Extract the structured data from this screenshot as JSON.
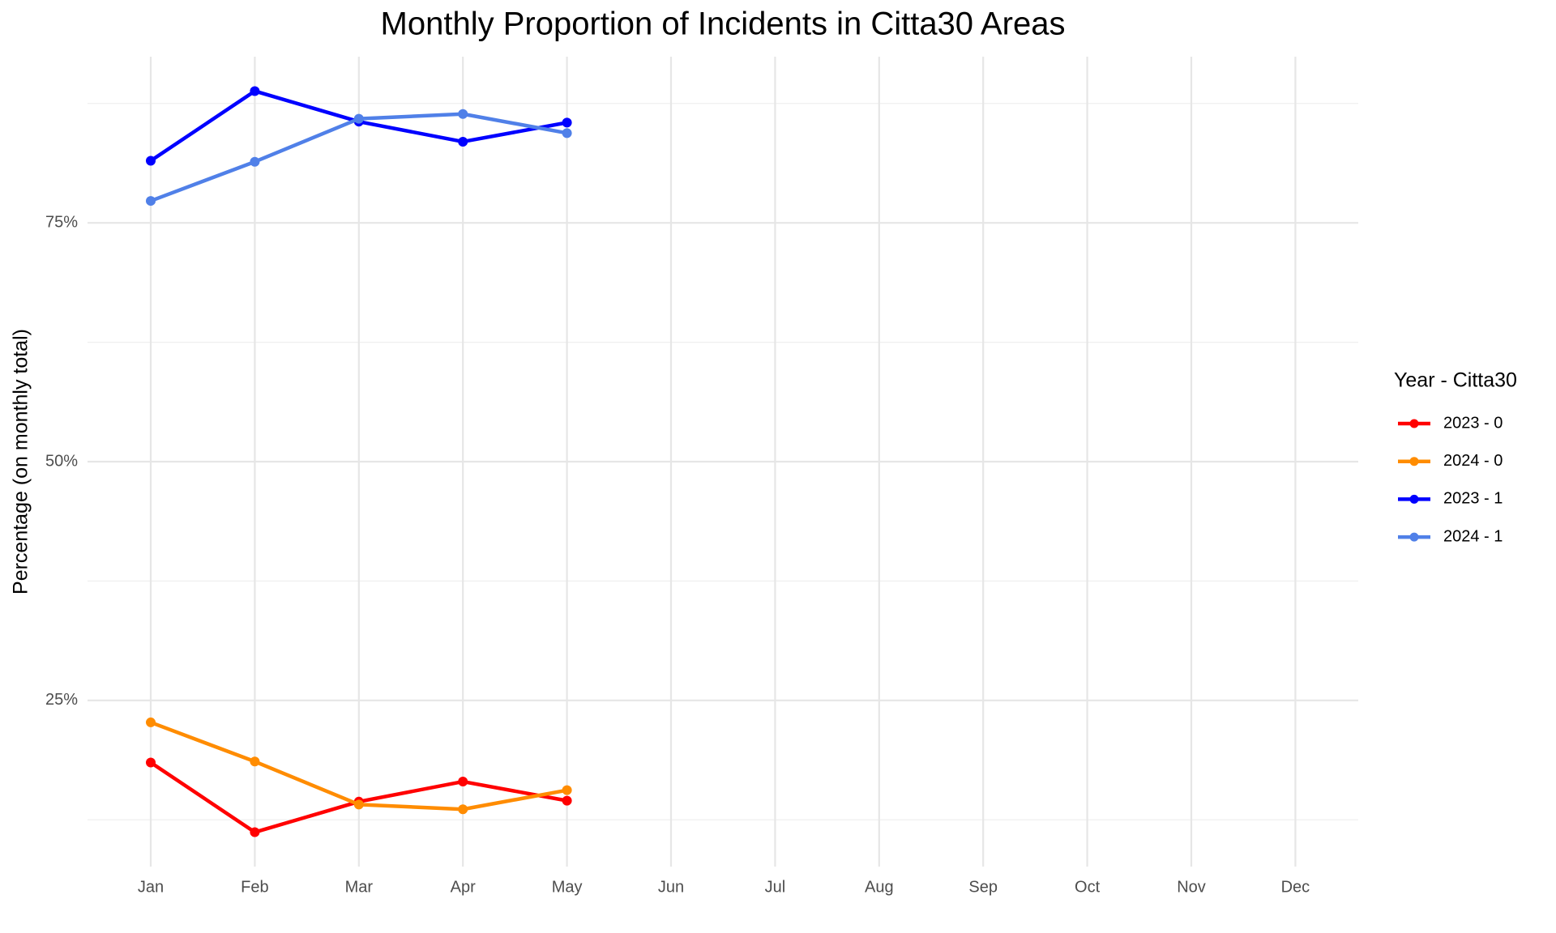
{
  "chart_data": {
    "type": "line",
    "title": "Monthly Proportion of Incidents in Citta30 Areas",
    "y_label": "Percentage (on monthly total)",
    "legend_title": "Year - Citta30",
    "legend_position": "right",
    "grid": true,
    "categories": [
      "Jan",
      "Feb",
      "Mar",
      "Apr",
      "May",
      "Jun",
      "Jul",
      "Aug",
      "Sep",
      "Oct",
      "Nov",
      "Dec"
    ],
    "ylim": [
      7.6,
      92.4
    ],
    "yticks": [
      {
        "value": 25,
        "label": "25%"
      },
      {
        "value": 50,
        "label": "50%"
      },
      {
        "value": 75,
        "label": "75%"
      }
    ],
    "yminor_ticks": [
      12.5,
      37.5,
      62.5,
      87.5
    ],
    "series": [
      {
        "name": "2023 - 0",
        "color": "#ff0000",
        "values": [
          18.5,
          11.2,
          14.4,
          16.5,
          14.5,
          null,
          null,
          null,
          null,
          null,
          null,
          null
        ]
      },
      {
        "name": "2024 - 0",
        "color": "#ff8c00",
        "values": [
          22.7,
          18.6,
          14.1,
          13.6,
          15.6,
          null,
          null,
          null,
          null,
          null,
          null,
          null
        ]
      },
      {
        "name": "2023 - 1",
        "color": "#0000ff",
        "values": [
          81.5,
          88.8,
          85.6,
          83.5,
          85.5,
          null,
          null,
          null,
          null,
          null,
          null,
          null
        ]
      },
      {
        "name": "2024 - 1",
        "color": "#5080e8",
        "values": [
          77.3,
          81.4,
          85.9,
          86.4,
          84.4,
          null,
          null,
          null,
          null,
          null,
          null,
          null
        ]
      }
    ]
  }
}
